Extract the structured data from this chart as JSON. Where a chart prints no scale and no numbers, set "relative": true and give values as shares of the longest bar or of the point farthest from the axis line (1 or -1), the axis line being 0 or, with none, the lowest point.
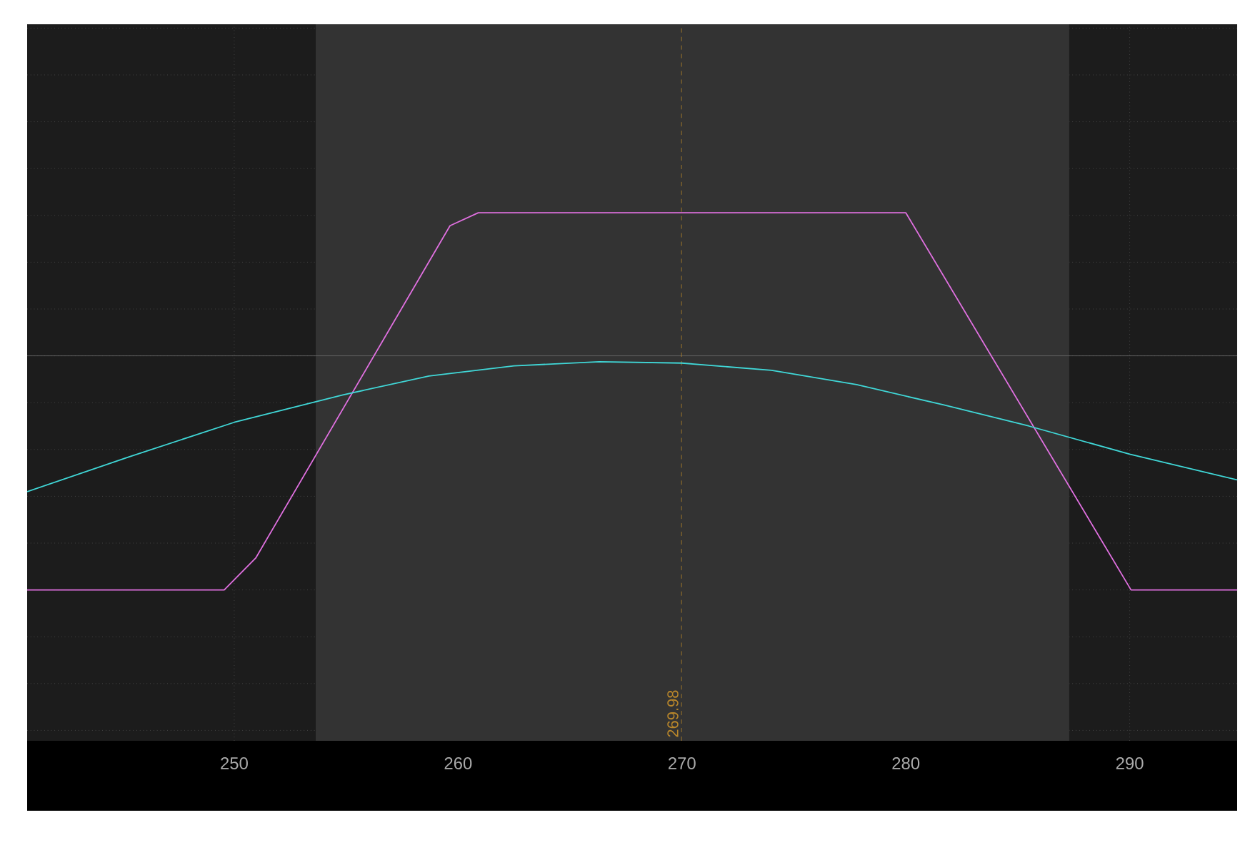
{
  "chart_data": {
    "type": "line",
    "relative": true,
    "x": [
      240.75,
      245.28,
      250,
      254.85,
      258.7,
      262.5,
      266.3,
      270,
      274,
      277.8,
      281.7,
      285.5,
      290,
      294.8
    ],
    "series": [
      {
        "color": "#e070e0",
        "x": [
          240.75,
          249.55,
          250.96,
          259.64,
          260.9,
          280.0,
          290.06,
          294.8
        ],
        "values": [
          -1,
          -1,
          -0.864,
          0.556,
          0.611,
          0.611,
          -1,
          -1
        ]
      },
      {
        "color": "#40d8d8",
        "values": [
          -0.58,
          -0.432,
          -0.284,
          -0.167,
          -0.086,
          -0.043,
          -0.025,
          -0.031,
          -0.062,
          -0.123,
          -0.21,
          -0.3,
          -0.42,
          -0.53
        ]
      }
    ],
    "xlim": [
      240.75,
      294.8
    ],
    "xticks": [
      250,
      260,
      270,
      280,
      290
    ],
    "grid": true,
    "ref_lines": [
      {
        "axis": "x",
        "value": 269.98,
        "label": "269.98",
        "color": "#b8862b",
        "line_style": "dashed"
      }
    ],
    "bands": [
      {
        "axis": "x",
        "from": 253.64,
        "to": 287.3,
        "color": "#333333"
      }
    ]
  }
}
